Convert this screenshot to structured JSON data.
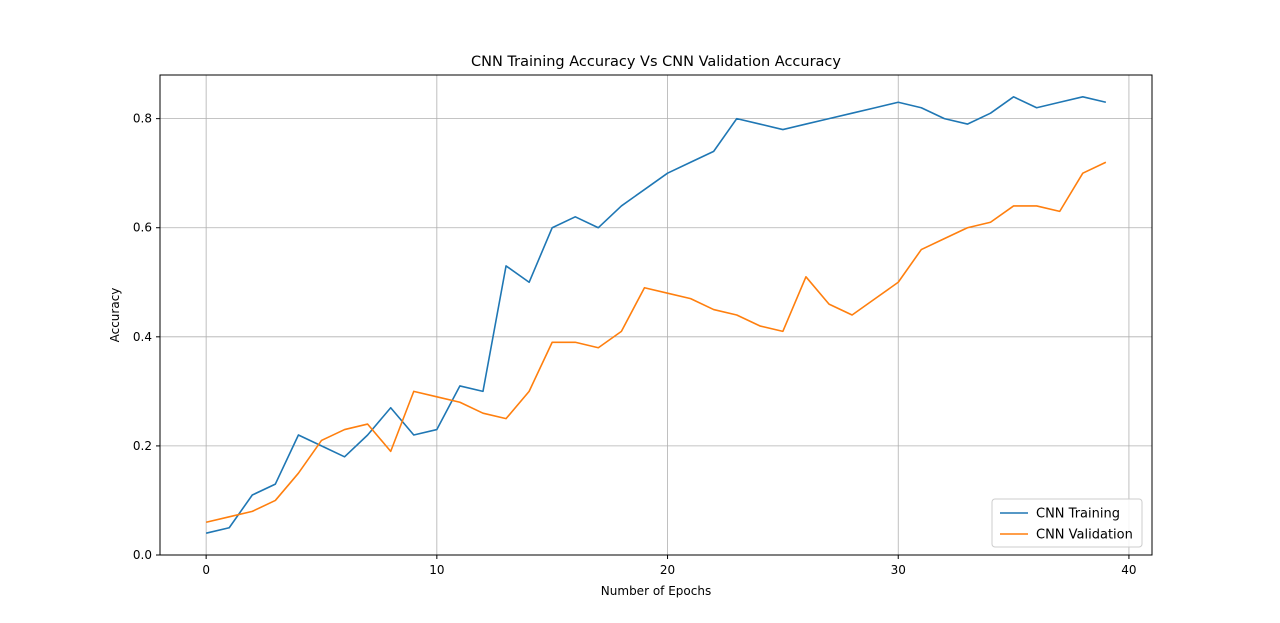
{
  "chart_data": {
    "type": "line",
    "title": "CNN Training Accuracy Vs CNN Validation Accuracy",
    "xlabel": "Number of Epochs",
    "ylabel": "Accuracy",
    "xlim": [
      -2,
      41
    ],
    "ylim": [
      0,
      0.88
    ],
    "xticks": [
      0,
      10,
      20,
      30,
      40
    ],
    "yticks": [
      0.0,
      0.2,
      0.4,
      0.6,
      0.8
    ],
    "xtick_labels": [
      "0",
      "10",
      "20",
      "30",
      "40"
    ],
    "ytick_labels": [
      "0.0",
      "0.2",
      "0.4",
      "0.6",
      "0.8"
    ],
    "grid": true,
    "legend_position": "bottom-right",
    "x": [
      0,
      1,
      2,
      3,
      4,
      5,
      6,
      7,
      8,
      9,
      10,
      11,
      12,
      13,
      14,
      15,
      16,
      17,
      18,
      19,
      20,
      21,
      22,
      23,
      24,
      25,
      26,
      27,
      28,
      29,
      30,
      31,
      32,
      33,
      34,
      35,
      36,
      37,
      38,
      39
    ],
    "series": [
      {
        "name": "CNN Training",
        "color": "#1f77b4",
        "values": [
          0.04,
          0.05,
          0.11,
          0.13,
          0.22,
          0.2,
          0.18,
          0.22,
          0.27,
          0.22,
          0.23,
          0.31,
          0.3,
          0.53,
          0.5,
          0.6,
          0.62,
          0.6,
          0.64,
          0.67,
          0.7,
          0.72,
          0.74,
          0.8,
          0.79,
          0.78,
          0.79,
          0.8,
          0.81,
          0.82,
          0.83,
          0.82,
          0.8,
          0.79,
          0.81,
          0.84,
          0.82,
          0.83,
          0.84,
          0.83
        ]
      },
      {
        "name": "CNN Validation",
        "color": "#ff7f0e",
        "values": [
          0.06,
          0.07,
          0.08,
          0.1,
          0.15,
          0.21,
          0.23,
          0.24,
          0.19,
          0.3,
          0.29,
          0.28,
          0.26,
          0.25,
          0.3,
          0.39,
          0.39,
          0.38,
          0.41,
          0.49,
          0.48,
          0.47,
          0.45,
          0.44,
          0.42,
          0.41,
          0.51,
          0.46,
          0.44,
          0.47,
          0.5,
          0.56,
          0.58,
          0.6,
          0.61,
          0.64,
          0.64,
          0.63,
          0.7,
          0.72
        ]
      }
    ]
  }
}
